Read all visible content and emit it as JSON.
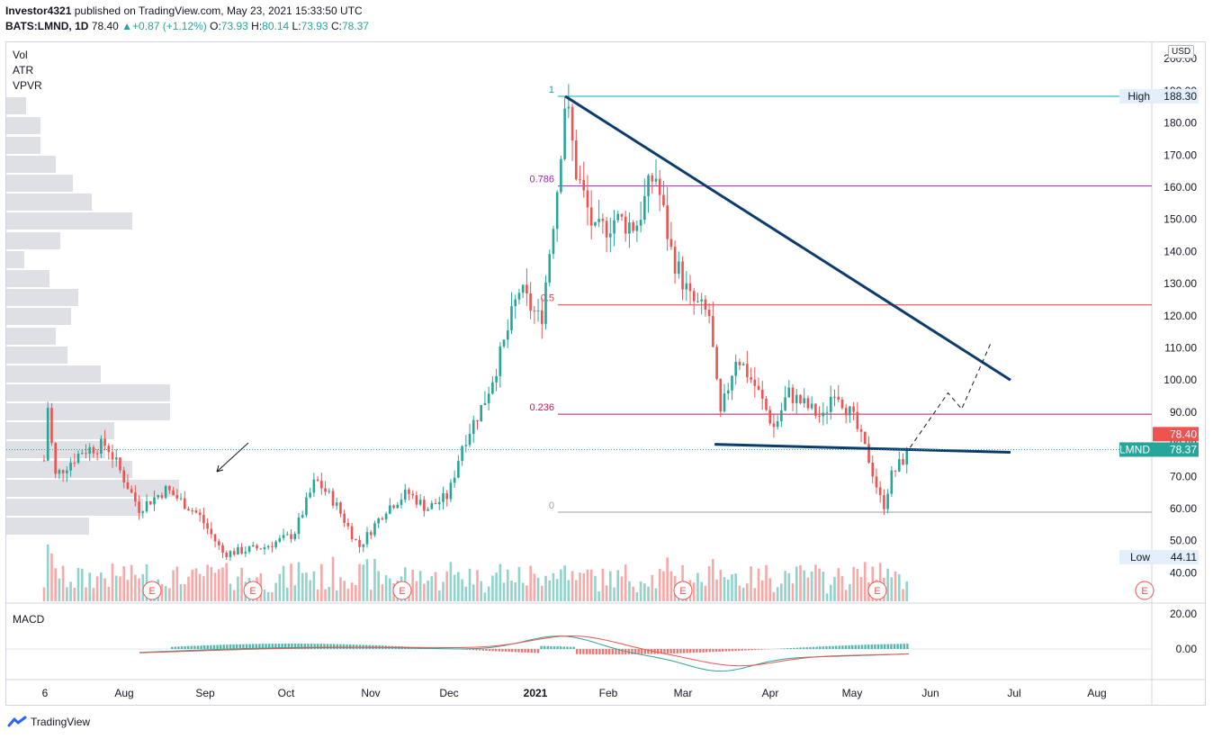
{
  "header": {
    "publisher": "Investor4321",
    "published_text": "published on TradingView.com, May 23, 2021 15:33:50 UTC",
    "symbol": "BATS:LMND, 1D",
    "last": "78.40",
    "arrow": "▲",
    "change": "+0.87 (+1.12%)",
    "o_label": "O:",
    "o": "73.93",
    "h_label": "H:",
    "h": "80.14",
    "l_label": "L:",
    "l": "73.93",
    "c_label": "C:",
    "c": "78.37"
  },
  "indicators": [
    "Vol",
    "ATR",
    "VPVR"
  ],
  "currency_button": "USD",
  "macd_label": "MACD",
  "footer": {
    "brand": "TradingView",
    "logo_icon": "tradingview-logo-icon"
  },
  "colors": {
    "up": "#26a69a",
    "down": "#ef5350",
    "trendline": "#0c3c6e",
    "fib_0786": "#9c27b0",
    "fib_05": "#e53935",
    "fib_0236": "#c2185b",
    "fib_1": "#00acc1",
    "fib_0": "#9e9e9e"
  },
  "chart_data": {
    "type": "candlestick",
    "symbol": "BATS:LMND",
    "timeframe": "1D",
    "y_ticks": [
      40,
      50,
      60,
      70,
      80,
      90,
      100,
      110,
      120,
      130,
      140,
      150,
      160,
      170,
      180,
      190,
      200
    ],
    "y_tick_labels": [
      "40.00",
      "50.00",
      "60.00",
      "70.00",
      "80.00",
      "90.00",
      "100.00",
      "110.00",
      "120.00",
      "130.00",
      "140.00",
      "150.00",
      "160.00",
      "170.00",
      "180.00",
      "190.00",
      "200.00"
    ],
    "x_tick_labels": [
      "6",
      "Aug",
      "Sep",
      "Oct",
      "Nov",
      "Dec",
      "2021",
      "Feb",
      "Mar",
      "Apr",
      "May",
      "Jun",
      "Jul",
      "Aug"
    ],
    "price_anchors": [
      [
        "2020-07-06",
        75
      ],
      [
        "2020-07-07",
        95
      ],
      [
        "2020-07-10",
        70
      ],
      [
        "2020-07-20",
        78
      ],
      [
        "2020-07-29",
        80
      ],
      [
        "2020-08-10",
        60
      ],
      [
        "2020-08-20",
        66
      ],
      [
        "2020-09-01",
        58
      ],
      [
        "2020-09-10",
        46
      ],
      [
        "2020-09-25",
        48
      ],
      [
        "2020-10-06",
        52
      ],
      [
        "2020-10-14",
        69
      ],
      [
        "2020-10-21",
        62
      ],
      [
        "2020-10-30",
        48
      ],
      [
        "2020-11-09",
        60
      ],
      [
        "2020-11-17",
        65
      ],
      [
        "2020-11-24",
        60
      ],
      [
        "2020-12-02",
        64
      ],
      [
        "2020-12-07",
        80
      ],
      [
        "2020-12-15",
        93
      ],
      [
        "2020-12-22",
        110
      ],
      [
        "2020-12-28",
        128
      ],
      [
        "2021-01-05",
        118
      ],
      [
        "2021-01-11",
        160
      ],
      [
        "2021-01-14",
        188.3
      ],
      [
        "2021-01-18",
        165
      ],
      [
        "2021-01-25",
        145
      ],
      [
        "2021-02-01",
        150
      ],
      [
        "2021-02-09",
        148
      ],
      [
        "2021-02-16",
        165
      ],
      [
        "2021-02-22",
        140
      ],
      [
        "2021-03-01",
        125
      ],
      [
        "2021-03-08",
        120
      ],
      [
        "2021-03-12",
        88
      ],
      [
        "2021-03-18",
        108
      ],
      [
        "2021-03-25",
        98
      ],
      [
        "2021-04-01",
        85
      ],
      [
        "2021-04-06",
        96
      ],
      [
        "2021-04-19",
        88
      ],
      [
        "2021-04-23",
        98
      ],
      [
        "2021-04-30",
        88
      ],
      [
        "2021-05-06",
        75
      ],
      [
        "2021-05-11",
        60
      ],
      [
        "2021-05-14",
        70
      ],
      [
        "2021-05-21",
        78.37
      ]
    ],
    "earnings_markers": [
      "E",
      "E",
      "E",
      "E",
      "E",
      "E"
    ],
    "fibonacci": [
      {
        "level": "1",
        "price": 188.3
      },
      {
        "level": "0.786",
        "price": 160.4
      },
      {
        "level": "0.5",
        "price": 123.4
      },
      {
        "level": "0.236",
        "price": 89.4
      },
      {
        "level": "0",
        "price": 58.9
      }
    ],
    "price_scale_labels": [
      {
        "text": "High",
        "value": "188.30"
      },
      {
        "text": "",
        "value": "78.40"
      },
      {
        "text": "LMND",
        "value": "78.37"
      },
      {
        "text": "Low",
        "value": "44.11"
      }
    ],
    "trendlines": [
      {
        "from": [
          "2021-01-14",
          188.3
        ],
        "to": [
          "2021-06-27",
          100
        ]
      },
      {
        "from": [
          "2021-03-10",
          80
        ],
        "to": [
          "2021-06-27",
          77.5
        ]
      }
    ],
    "projection": [
      [
        "2021-05-21",
        79
      ],
      [
        "2021-06-04",
        96
      ],
      [
        "2021-06-09",
        91
      ],
      [
        "2021-06-20",
        112
      ]
    ],
    "macd_ticks": [
      "20.00",
      "0.00"
    ]
  }
}
